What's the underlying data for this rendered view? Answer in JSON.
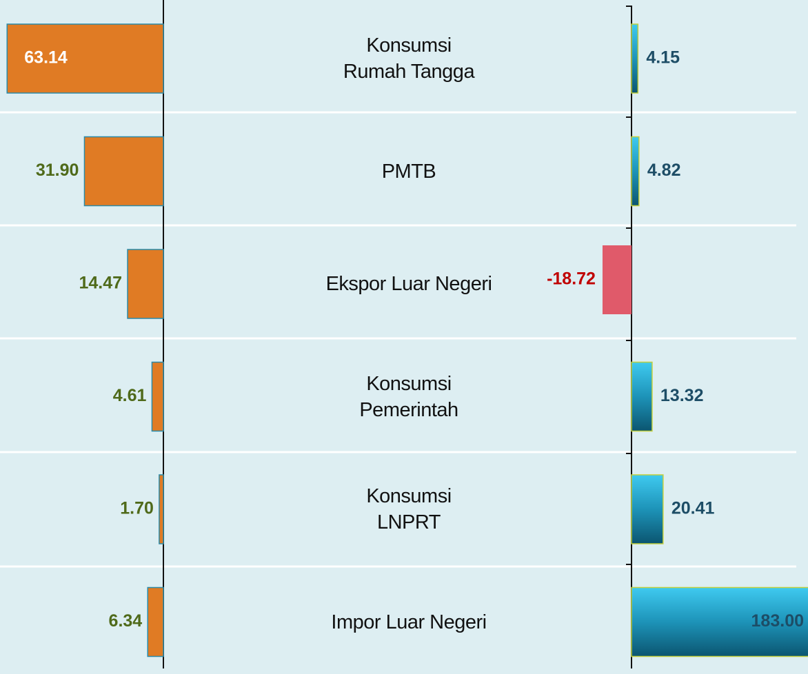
{
  "chart_data": {
    "type": "bar",
    "orientation": "horizontal",
    "categories": [
      "Konsumsi\nRumah Tangga",
      "PMTB",
      "Ekspor Luar Negeri",
      "Konsumsi\nPemerintah",
      "Konsumsi\nLNPRT",
      "Impor Luar Negeri"
    ],
    "series": [
      {
        "color": "#e07b24",
        "values": [
          63.14,
          31.9,
          14.47,
          4.61,
          1.7,
          6.34
        ],
        "value_labels": [
          "63.14",
          "31.90",
          "14.47",
          "4.61",
          "1.70",
          "6.34"
        ]
      },
      {
        "color": "#2aa6cc",
        "negative_color": "#e05a6a",
        "values": [
          4.15,
          4.82,
          -18.72,
          13.32,
          20.41,
          183.0
        ],
        "value_labels": [
          "4.15",
          "4.82",
          "-18.72",
          "13.32",
          "20.41",
          "183.00"
        ],
        "axis": "x2"
      }
    ],
    "xlim": [
      0,
      66
    ],
    "x2lim": [
      0,
      114
    ]
  }
}
